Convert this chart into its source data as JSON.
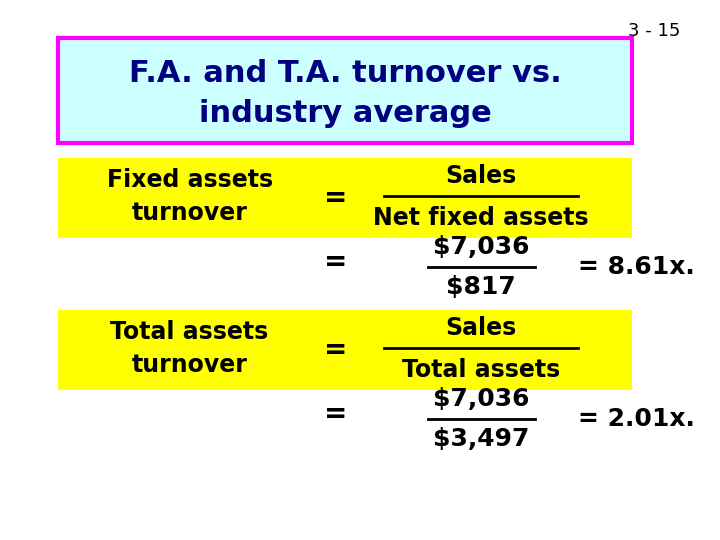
{
  "slide_number": "3 - 15",
  "title_line1": "F.A. and T.A. turnover vs.",
  "title_line2": "industry average",
  "title_bg_color": "#ccffff",
  "title_border_color": "#ff00ff",
  "yellow_color": "#ffff00",
  "text_color": "#000080",
  "black_color": "#000000",
  "bg_color": "#ffffff",
  "fa_label_line1": "Fixed assets",
  "fa_label_line2": "turnover",
  "ta_label_line1": "Total assets",
  "ta_label_line2": "turnover",
  "fa_formula_top": "Sales",
  "fa_formula_bottom": "Net fixed assets",
  "fa_num": "$7,036",
  "fa_den": "$817",
  "fa_result": "= 8.61x.",
  "ta_formula_top": "Sales",
  "ta_formula_bottom": "Total assets",
  "ta_num": "$7,036",
  "ta_den": "$3,497",
  "ta_result": "= 2.01x."
}
